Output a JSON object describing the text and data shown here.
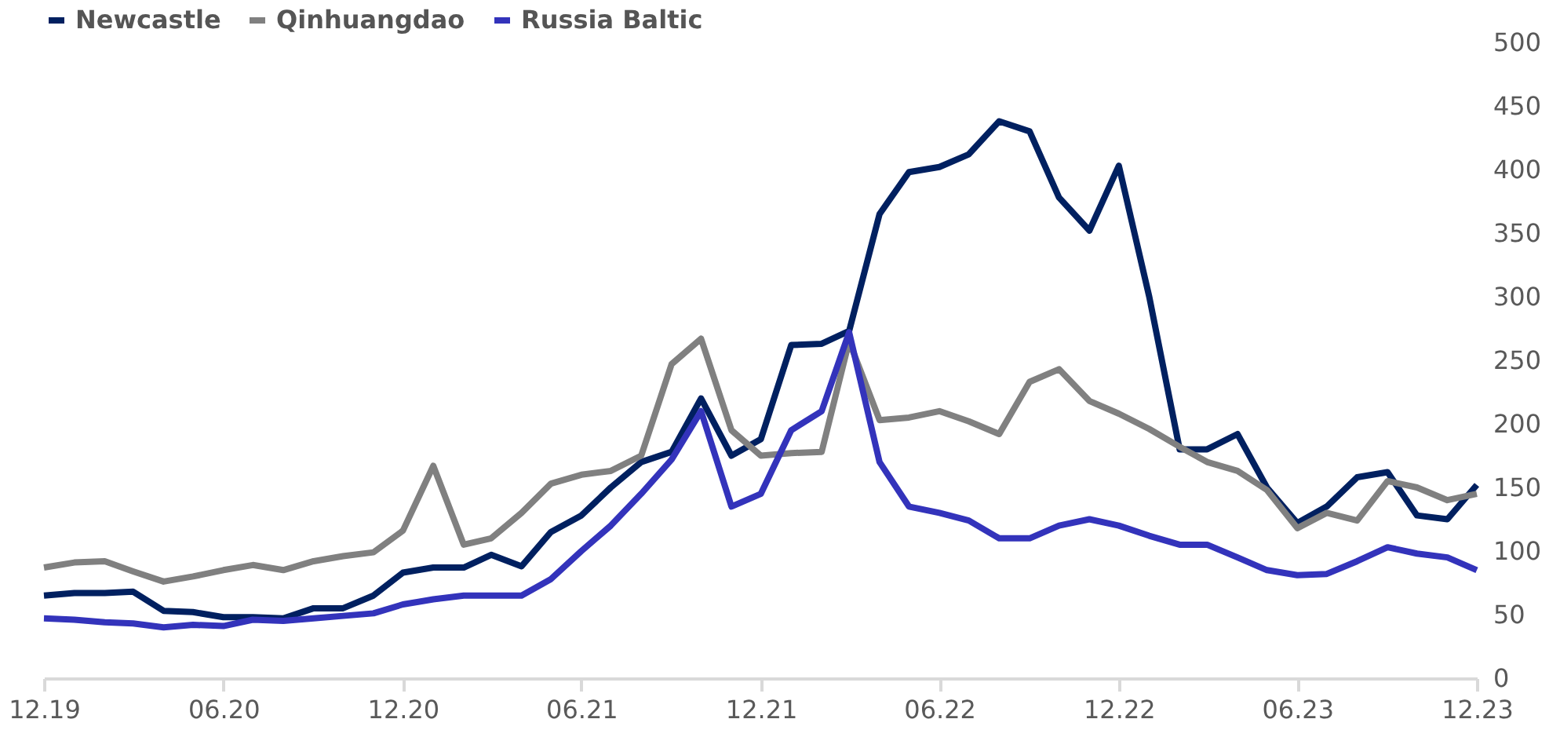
{
  "chart_data": {
    "type": "line",
    "x": [
      "2019-12",
      "2020-01",
      "2020-02",
      "2020-03",
      "2020-04",
      "2020-05",
      "2020-06",
      "2020-07",
      "2020-08",
      "2020-09",
      "2020-10",
      "2020-11",
      "2020-12",
      "2021-01",
      "2021-02",
      "2021-03",
      "2021-04",
      "2021-05",
      "2021-06",
      "2021-07",
      "2021-08",
      "2021-09",
      "2021-10",
      "2021-11",
      "2021-12",
      "2022-01",
      "2022-02",
      "2022-03",
      "2022-04",
      "2022-05",
      "2022-06",
      "2022-07",
      "2022-08",
      "2022-09",
      "2022-10",
      "2022-11",
      "2022-12",
      "2023-01",
      "2023-02",
      "2023-03",
      "2023-04",
      "2023-05",
      "2023-06",
      "2023-07",
      "2023-08",
      "2023-09",
      "2023-10",
      "2023-11",
      "2023-12"
    ],
    "series": [
      {
        "name": "Newcastle",
        "color": "#002060",
        "values": [
          65,
          67,
          67,
          68,
          53,
          52,
          48,
          48,
          47,
          55,
          55,
          65,
          83,
          87,
          87,
          97,
          88,
          115,
          128,
          150,
          170,
          178,
          220,
          175,
          188,
          262,
          263,
          273,
          365,
          398,
          402,
          412,
          438,
          430,
          378,
          352,
          403,
          300,
          180,
          180,
          192,
          150,
          122,
          135,
          158,
          162,
          128,
          125,
          152
        ]
      },
      {
        "name": "Qinhuangdao",
        "color": "#808080",
        "values": [
          87,
          91,
          92,
          84,
          76,
          80,
          85,
          89,
          85,
          92,
          96,
          99,
          116,
          167,
          105,
          110,
          130,
          153,
          160,
          163,
          175,
          247,
          267,
          195,
          175,
          177,
          178,
          265,
          203,
          205,
          210,
          202,
          192,
          233,
          243,
          218,
          208,
          196,
          182,
          170,
          163,
          148,
          118,
          130,
          124,
          155,
          150,
          140,
          145
        ]
      },
      {
        "name": "Russia Baltic",
        "color": "#3333bb",
        "values": [
          47,
          46,
          44,
          43,
          40,
          42,
          41,
          46,
          45,
          47,
          49,
          51,
          58,
          62,
          65,
          65,
          65,
          78,
          100,
          120,
          145,
          172,
          210,
          135,
          145,
          195,
          210,
          272,
          170,
          135,
          130,
          124,
          110,
          110,
          120,
          125,
          120,
          112,
          105,
          105,
          95,
          85,
          81,
          82,
          92,
          103,
          98,
          95,
          85
        ]
      }
    ],
    "xlim": [
      "2019-12",
      "2023-12"
    ],
    "xticks": [
      {
        "value": "2019-12",
        "label": "12.19"
      },
      {
        "value": "2020-06",
        "label": "06.20"
      },
      {
        "value": "2020-12",
        "label": "12.20"
      },
      {
        "value": "2021-06",
        "label": "06.21"
      },
      {
        "value": "2021-12",
        "label": "12.21"
      },
      {
        "value": "2022-06",
        "label": "06.22"
      },
      {
        "value": "2022-12",
        "label": "12.22"
      },
      {
        "value": "2023-06",
        "label": "06.23"
      },
      {
        "value": "2023-12",
        "label": "12.23"
      }
    ],
    "ylim": [
      0,
      500
    ],
    "yticks": [
      0,
      50,
      100,
      150,
      200,
      250,
      300,
      350,
      400,
      450,
      500
    ],
    "grid": false,
    "legend": "top left",
    "marker": "none",
    "line_style": "solid"
  }
}
